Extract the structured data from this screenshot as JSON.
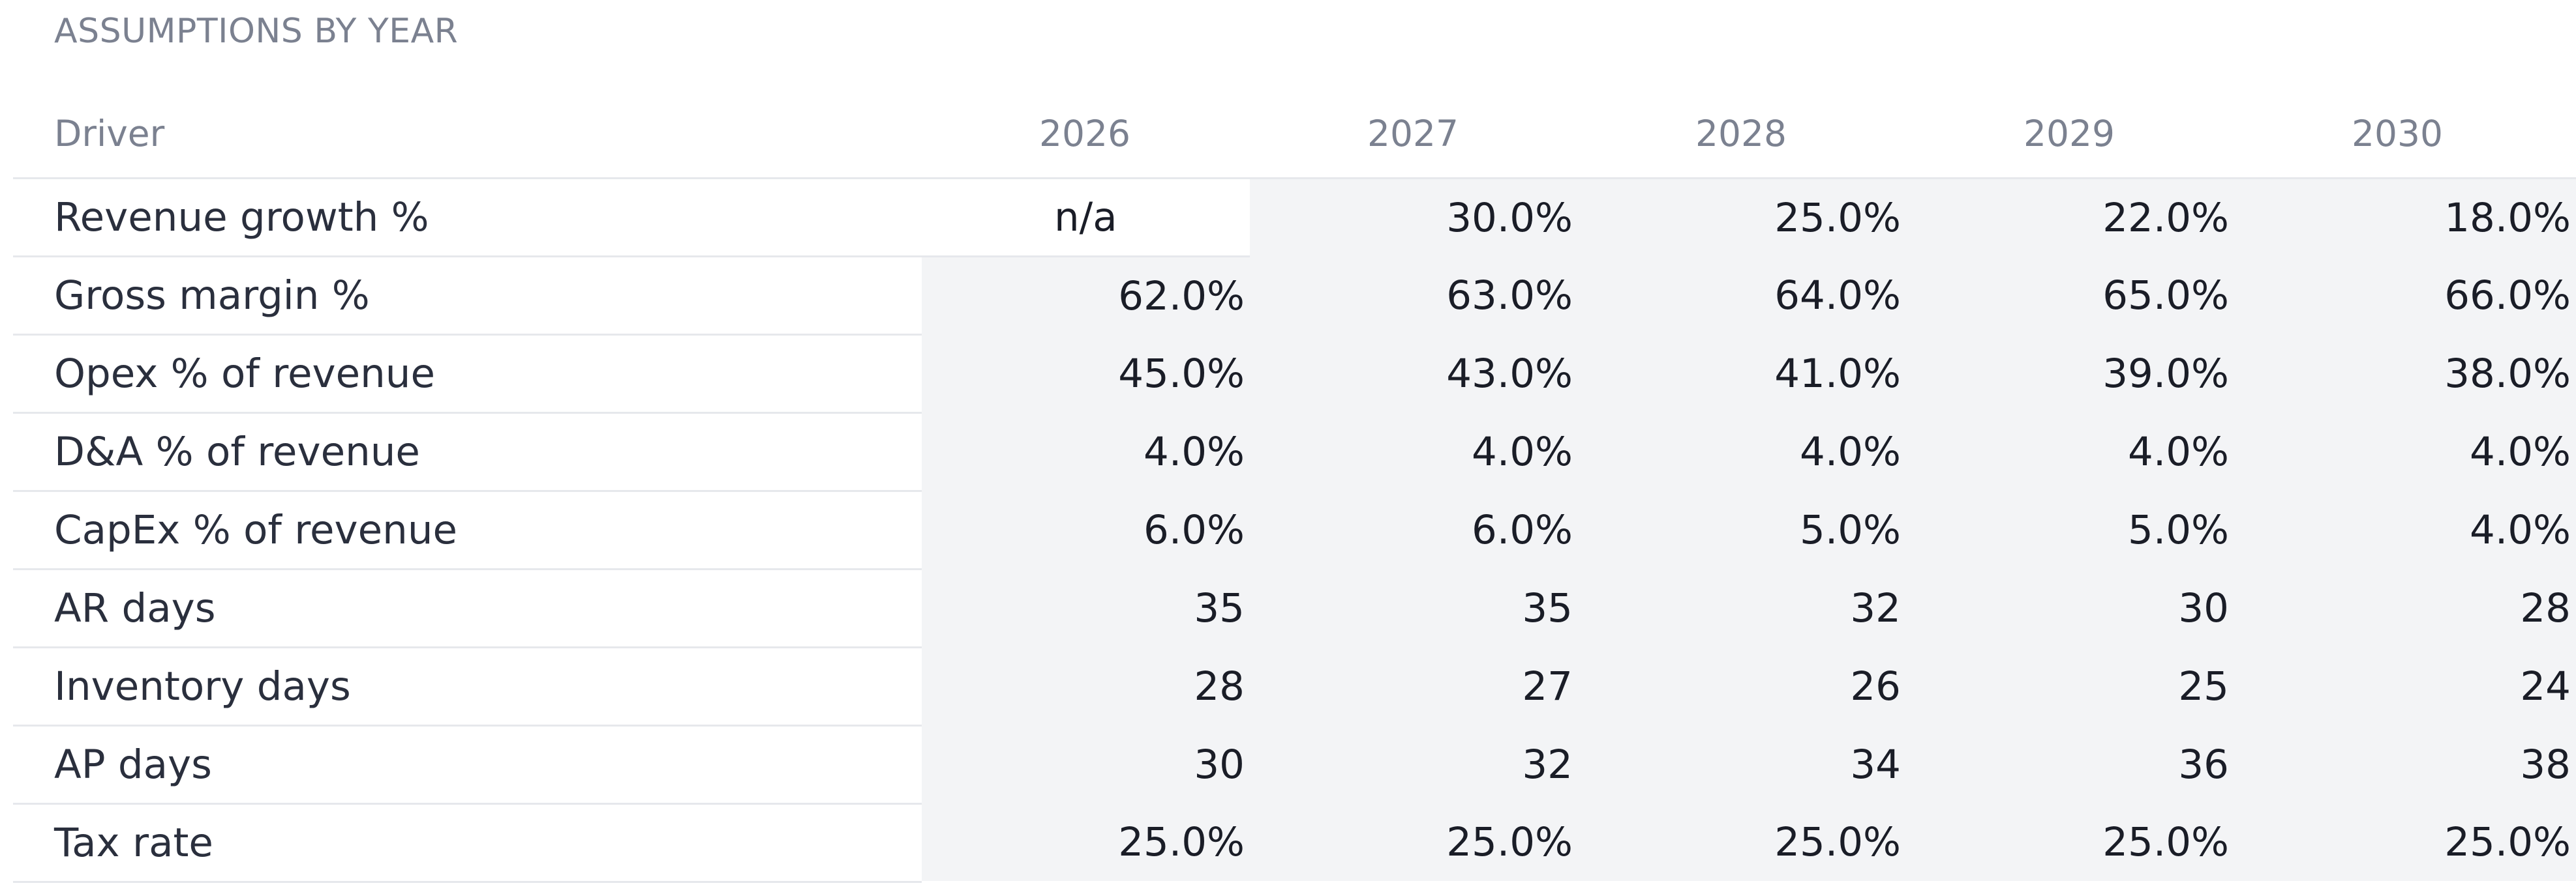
{
  "section": {
    "title": "ASSUMPTIONS BY YEAR"
  },
  "table": {
    "columns": [
      "Driver",
      "2026",
      "2027",
      "2028",
      "2029",
      "2030"
    ],
    "rows": [
      {
        "driver": "Revenue growth %",
        "values": [
          "n/a",
          "30.0%",
          "25.0%",
          "22.0%",
          "18.0%"
        ]
      },
      {
        "driver": "Gross margin %",
        "values": [
          "62.0%",
          "63.0%",
          "64.0%",
          "65.0%",
          "66.0%"
        ]
      },
      {
        "driver": "Opex % of revenue",
        "values": [
          "45.0%",
          "43.0%",
          "41.0%",
          "39.0%",
          "38.0%"
        ]
      },
      {
        "driver": "D&A % of revenue",
        "values": [
          "4.0%",
          "4.0%",
          "4.0%",
          "4.0%",
          "4.0%"
        ]
      },
      {
        "driver": "CapEx % of revenue",
        "values": [
          "6.0%",
          "6.0%",
          "5.0%",
          "5.0%",
          "4.0%"
        ]
      },
      {
        "driver": "AR days",
        "values": [
          "35",
          "35",
          "32",
          "30",
          "28"
        ]
      },
      {
        "driver": "Inventory days",
        "values": [
          "28",
          "27",
          "26",
          "25",
          "24"
        ]
      },
      {
        "driver": "AP days",
        "values": [
          "30",
          "32",
          "34",
          "36",
          "38"
        ]
      },
      {
        "driver": "Tax rate",
        "values": [
          "25.0%",
          "25.0%",
          "25.0%",
          "25.0%",
          "25.0%"
        ]
      }
    ]
  },
  "colors": {
    "editable_cell_bg": "#f3f4f6",
    "header_text": "#7b8190",
    "row_divider": "#e6e8ec"
  }
}
